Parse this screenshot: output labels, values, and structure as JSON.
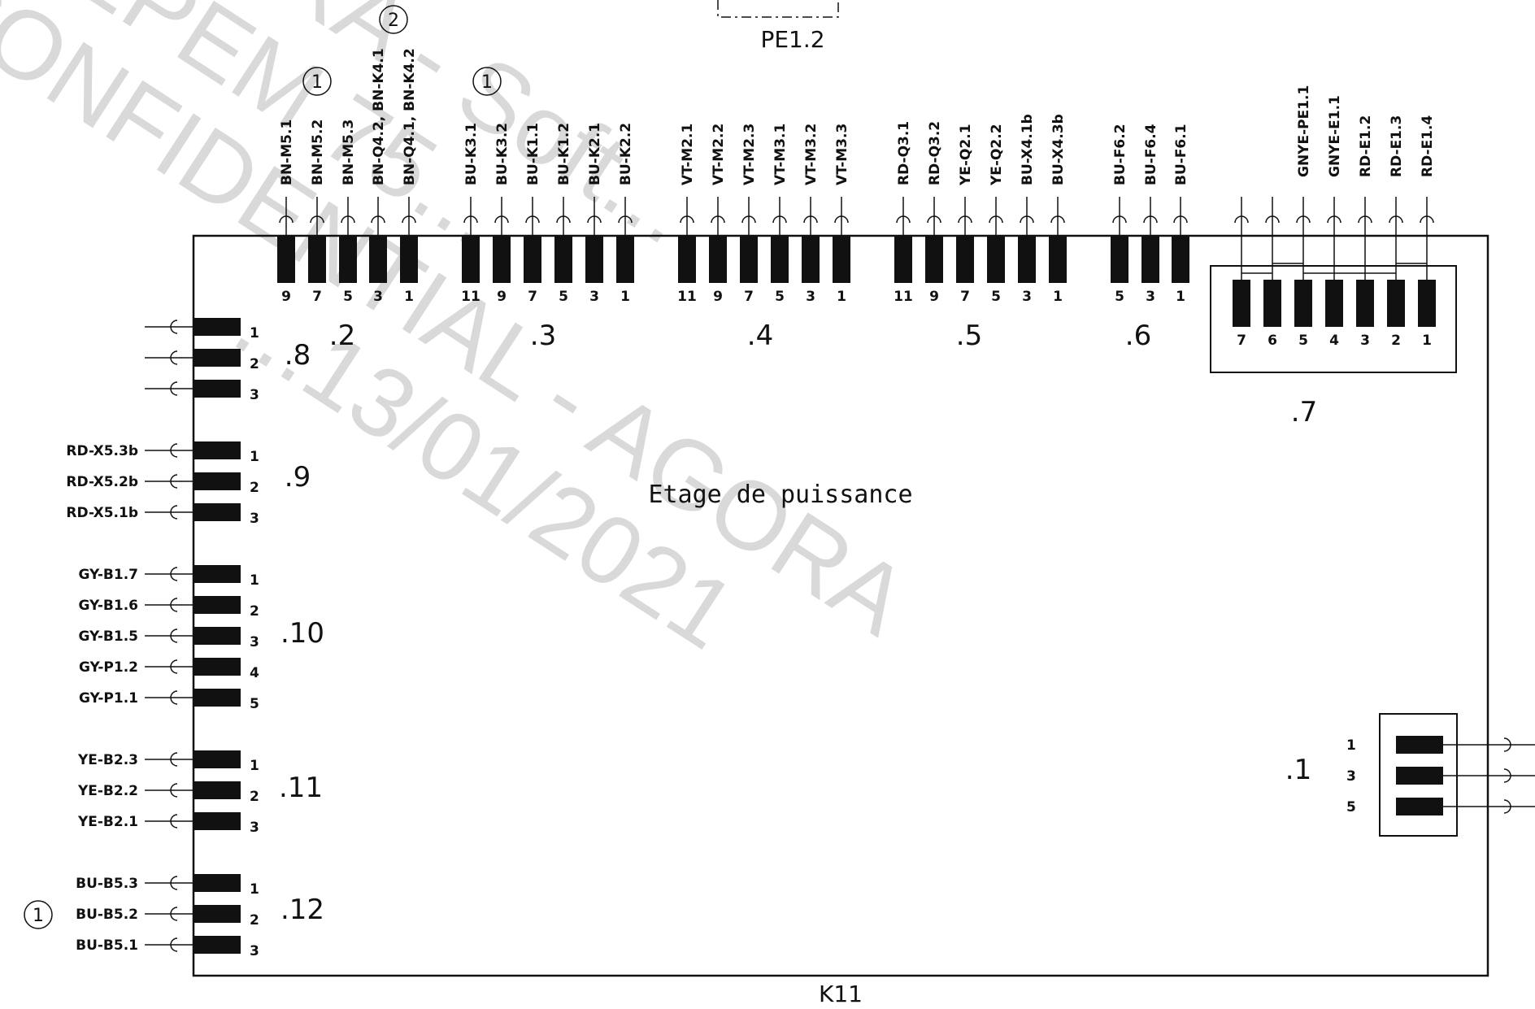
{
  "document": {
    "component_ref": "K11",
    "title": "Etage de puissance",
    "top_connector_ref": "PE1.2",
    "watermark_lines": [
      "AGORA - Soft...",
      "DEPEM 75...",
      "CONFIDENTIAL - AGORA",
      "...13/01/2021"
    ]
  },
  "connectors": {
    "c1": {
      "label": ".1",
      "pins": [
        {
          "num": "1",
          "wire": ""
        },
        {
          "num": "3",
          "wire": ""
        },
        {
          "num": "5",
          "wire": ""
        }
      ]
    },
    "c2": {
      "label": ".2",
      "pins": [
        {
          "num": "9",
          "wire": "BN-M5.1"
        },
        {
          "num": "7",
          "wire": "BN-M5.2"
        },
        {
          "num": "5",
          "wire": "BN-M5.3"
        },
        {
          "num": "3",
          "wire": "BN-Q4.2, BN-K4.1"
        },
        {
          "num": "1",
          "wire": "BN-Q4.1, BN-K4.2"
        }
      ]
    },
    "c3": {
      "label": ".3",
      "pins": [
        {
          "num": "11",
          "wire": "BU-K3.1"
        },
        {
          "num": "9",
          "wire": "BU-K3.2"
        },
        {
          "num": "7",
          "wire": "BU-K1.1"
        },
        {
          "num": "5",
          "wire": "BU-K1.2"
        },
        {
          "num": "3",
          "wire": "BU-K2.1"
        },
        {
          "num": "1",
          "wire": "BU-K2.2"
        }
      ]
    },
    "c4": {
      "label": ".4",
      "pins": [
        {
          "num": "11",
          "wire": "VT-M2.1"
        },
        {
          "num": "9",
          "wire": "VT-M2.2"
        },
        {
          "num": "7",
          "wire": "VT-M2.3"
        },
        {
          "num": "5",
          "wire": "VT-M3.1"
        },
        {
          "num": "3",
          "wire": "VT-M3.2"
        },
        {
          "num": "1",
          "wire": "VT-M3.3"
        }
      ]
    },
    "c5": {
      "label": ".5",
      "pins": [
        {
          "num": "11",
          "wire": "RD-Q3.1"
        },
        {
          "num": "9",
          "wire": "RD-Q3.2"
        },
        {
          "num": "7",
          "wire": "YE-Q2.1"
        },
        {
          "num": "5",
          "wire": "YE-Q2.2"
        },
        {
          "num": "3",
          "wire": "BU-X4.1b"
        },
        {
          "num": "1",
          "wire": "BU-X4.3b"
        }
      ]
    },
    "c6": {
      "label": ".6",
      "pins": [
        {
          "num": "5",
          "wire": "BU-F6.2"
        },
        {
          "num": "3",
          "wire": "BU-F6.4"
        },
        {
          "num": "1",
          "wire": "BU-F6.1"
        }
      ]
    },
    "c7": {
      "label": ".7",
      "pins": [
        {
          "num": "7",
          "wire": ""
        },
        {
          "num": "6",
          "wire": ""
        },
        {
          "num": "5",
          "wire": "GNYE-PE1.1"
        },
        {
          "num": "4",
          "wire": "GNYE-E1.1"
        },
        {
          "num": "3",
          "wire": "RD-E1.2"
        },
        {
          "num": "2",
          "wire": "RD-E1.3"
        },
        {
          "num": "1",
          "wire": "RD-E1.4"
        }
      ]
    },
    "c8": {
      "label": ".8",
      "pins": [
        {
          "num": "1",
          "wire": ""
        },
        {
          "num": "2",
          "wire": ""
        },
        {
          "num": "3",
          "wire": ""
        }
      ]
    },
    "c9": {
      "label": ".9",
      "pins": [
        {
          "num": "1",
          "wire": "RD-X5.3b"
        },
        {
          "num": "2",
          "wire": "RD-X5.2b"
        },
        {
          "num": "3",
          "wire": "RD-X5.1b"
        }
      ]
    },
    "c10": {
      "label": ".10",
      "pins": [
        {
          "num": "1",
          "wire": "GY-B1.7"
        },
        {
          "num": "2",
          "wire": "GY-B1.6"
        },
        {
          "num": "3",
          "wire": "GY-B1.5"
        },
        {
          "num": "4",
          "wire": "GY-P1.2"
        },
        {
          "num": "5",
          "wire": "GY-P1.1"
        }
      ]
    },
    "c11": {
      "label": ".11",
      "pins": [
        {
          "num": "1",
          "wire": "YE-B2.3"
        },
        {
          "num": "2",
          "wire": "YE-B2.2"
        },
        {
          "num": "3",
          "wire": "YE-B2.1"
        }
      ]
    },
    "c12": {
      "label": ".12",
      "pins": [
        {
          "num": "1",
          "wire": "BU-B5.3"
        },
        {
          "num": "2",
          "wire": "BU-B5.2"
        },
        {
          "num": "3",
          "wire": "BU-B5.1"
        }
      ]
    }
  },
  "revision_badges": [
    {
      "id": "b1",
      "text": "1"
    },
    {
      "id": "b2",
      "text": "2"
    },
    {
      "id": "b3",
      "text": "1"
    },
    {
      "id": "b4",
      "text": "1"
    }
  ],
  "colors": {
    "ink": "#111111",
    "watermark": "#d9d9d9",
    "background": "#ffffff"
  }
}
